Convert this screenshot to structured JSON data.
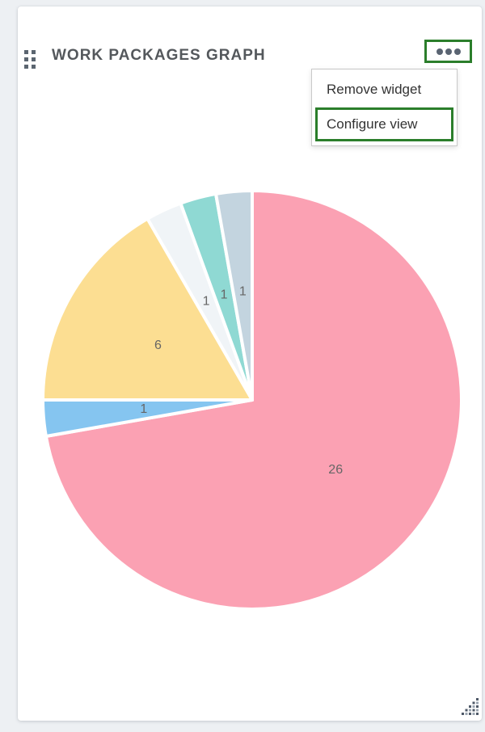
{
  "page": {
    "background_color": "#edf0f3"
  },
  "widget": {
    "title": "WORK PACKAGES GRAPH"
  },
  "icons": {
    "drag_handle": "grid-6-dots",
    "menu_button": "horizontal-ellipsis",
    "resize_handle": "triangular-dot-grip"
  },
  "context_menu": {
    "items": [
      {
        "label": "Remove widget",
        "highlighted": false
      },
      {
        "label": "Configure view",
        "highlighted": true
      }
    ]
  },
  "annotations": {
    "highlight_color": "#2b7e2b",
    "highlighted_elements": [
      "widget-menu-button",
      "menu-item-configure-view"
    ]
  },
  "chart_data": {
    "type": "pie",
    "title": "WORK PACKAGES GRAPH",
    "total": 36,
    "direction": "clockwise",
    "start_angle_deg": 0,
    "legend": "none",
    "slice_border_color": "#ffffff",
    "label_color": "#666666",
    "slices": [
      {
        "value": 26,
        "label": "26",
        "color": "#fba1b3"
      },
      {
        "value": 1,
        "label": "1",
        "color": "#85c5f0"
      },
      {
        "value": 6,
        "label": "6",
        "color": "#fcde92"
      },
      {
        "value": 1,
        "label": "1",
        "color": "#f0f4f7"
      },
      {
        "value": 1,
        "label": "1",
        "color": "#8fd9d3"
      },
      {
        "value": 1,
        "label": "1",
        "color": "#c3d4df"
      }
    ]
  }
}
